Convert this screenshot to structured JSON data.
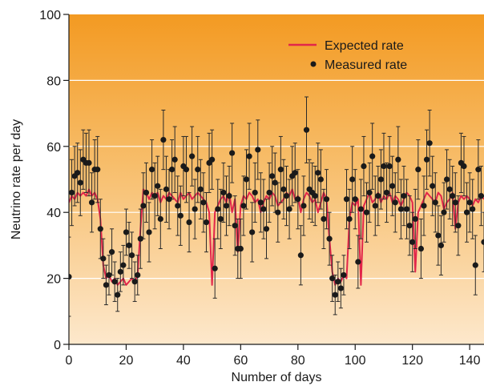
{
  "chart_data": {
    "type": "line",
    "title": "",
    "xlabel": "Number of days",
    "ylabel": "Neutrino rate per day",
    "xlim": [
      0,
      145
    ],
    "ylim": [
      0,
      100
    ],
    "x_ticks": [
      0,
      20,
      40,
      60,
      80,
      100,
      120,
      140
    ],
    "y_ticks": [
      0,
      20,
      40,
      60,
      80,
      100
    ],
    "grid": true,
    "legend_position": "top-right",
    "colors": {
      "expected": "#e2264a",
      "measured": "#1a1a1a",
      "background_top": "#f39a22",
      "background_bottom": "#fde8cc"
    },
    "legend": [
      {
        "name": "Expected rate",
        "kind": "line"
      },
      {
        "name": "Measured rate",
        "kind": "marker"
      }
    ],
    "series": [
      {
        "name": "Expected rate",
        "kind": "line",
        "x": [
          0,
          1,
          2,
          3,
          4,
          5,
          6,
          7,
          8,
          9,
          10,
          11,
          12,
          13,
          14,
          15,
          16,
          17,
          18,
          19,
          20,
          21,
          22,
          23,
          24,
          25,
          26,
          27,
          28,
          29,
          30,
          31,
          32,
          33,
          34,
          35,
          36,
          37,
          38,
          39,
          40,
          41,
          42,
          43,
          44,
          45,
          46,
          47,
          48,
          49,
          50,
          51,
          52,
          53,
          54,
          55,
          56,
          57,
          58,
          59,
          60,
          61,
          62,
          63,
          64,
          65,
          66,
          67,
          68,
          69,
          70,
          71,
          72,
          73,
          74,
          75,
          76,
          77,
          78,
          79,
          80,
          81,
          82,
          83,
          84,
          85,
          86,
          87,
          88,
          89,
          90,
          91,
          92,
          93,
          94,
          95,
          96,
          97,
          98,
          99,
          100,
          101,
          102,
          103,
          104,
          105,
          106,
          107,
          108,
          109,
          110,
          111,
          112,
          113,
          114,
          115,
          116,
          117,
          118,
          119,
          120,
          121,
          122,
          123,
          124,
          125,
          126,
          127,
          128,
          129,
          130,
          131,
          132,
          133,
          134,
          135,
          136,
          137,
          138,
          139,
          140,
          141,
          142,
          143,
          144,
          145
        ],
        "y": [
          43,
          45,
          44,
          46,
          45,
          46,
          45,
          47,
          45,
          46,
          44,
          38,
          24,
          20,
          21,
          19,
          20,
          18,
          19,
          20,
          18,
          19,
          20,
          19,
          21,
          35,
          47,
          46,
          44,
          46,
          45,
          46,
          43,
          45,
          44,
          46,
          45,
          44,
          43,
          46,
          44,
          45,
          46,
          44,
          45,
          46,
          45,
          44,
          43,
          40,
          18,
          40,
          42,
          44,
          45,
          43,
          46,
          40,
          44,
          28,
          42,
          45,
          44,
          46,
          45,
          43,
          44,
          40,
          43,
          45,
          44,
          46,
          45,
          42,
          43,
          44,
          46,
          45,
          47,
          44,
          45,
          40,
          44,
          46,
          45,
          43,
          44,
          40,
          43,
          46,
          44,
          32,
          22,
          18,
          20,
          19,
          21,
          20,
          38,
          43,
          42,
          44,
          18,
          42,
          44,
          46,
          43,
          44,
          46,
          43,
          45,
          44,
          46,
          43,
          45,
          44,
          42,
          44,
          46,
          45,
          43,
          22,
          40,
          42,
          44,
          46,
          45,
          44,
          43,
          46,
          45,
          41,
          43,
          44,
          46,
          35,
          43,
          45,
          44,
          45,
          44,
          42,
          44,
          43,
          45,
          44
        ]
      },
      {
        "name": "Measured rate",
        "kind": "marker",
        "points": [
          {
            "x": 0,
            "y": 20.5,
            "err": 12
          },
          {
            "x": 1,
            "y": 46,
            "err": 10
          },
          {
            "x": 2,
            "y": 51,
            "err": 9
          },
          {
            "x": 3,
            "y": 52,
            "err": 9
          },
          {
            "x": 4,
            "y": 49,
            "err": 10
          },
          {
            "x": 5,
            "y": 56,
            "err": 9
          },
          {
            "x": 6,
            "y": 55,
            "err": 9
          },
          {
            "x": 7,
            "y": 55,
            "err": 10
          },
          {
            "x": 8,
            "y": 43,
            "err": 9
          },
          {
            "x": 9,
            "y": 53,
            "err": 9
          },
          {
            "x": 10,
            "y": 53,
            "err": 10
          },
          {
            "x": 11,
            "y": 35,
            "err": 9
          },
          {
            "x": 12,
            "y": 26,
            "err": 6
          },
          {
            "x": 13,
            "y": 18,
            "err": 6
          },
          {
            "x": 14,
            "y": 21,
            "err": 6
          },
          {
            "x": 15,
            "y": 28,
            "err": 7
          },
          {
            "x": 16,
            "y": 19,
            "err": 6
          },
          {
            "x": 17,
            "y": 15,
            "err": 5
          },
          {
            "x": 18,
            "y": 22,
            "err": 6
          },
          {
            "x": 19,
            "y": 24,
            "err": 6
          },
          {
            "x": 20,
            "y": 34,
            "err": 7
          },
          {
            "x": 21,
            "y": 30,
            "err": 7
          },
          {
            "x": 22,
            "y": 27,
            "err": 7
          },
          {
            "x": 23,
            "y": 19,
            "err": 6
          },
          {
            "x": 24,
            "y": 21,
            "err": 6
          },
          {
            "x": 25,
            "y": 32,
            "err": 9
          },
          {
            "x": 26,
            "y": 42,
            "err": 10
          },
          {
            "x": 27,
            "y": 46,
            "err": 9
          },
          {
            "x": 28,
            "y": 34,
            "err": 9
          },
          {
            "x": 29,
            "y": 53,
            "err": 9
          },
          {
            "x": 30,
            "y": 45,
            "err": 10
          },
          {
            "x": 31,
            "y": 48,
            "err": 9
          },
          {
            "x": 32,
            "y": 38,
            "err": 9
          },
          {
            "x": 33,
            "y": 62,
            "err": 9
          },
          {
            "x": 34,
            "y": 47,
            "err": 10
          },
          {
            "x": 35,
            "y": 44,
            "err": 9
          },
          {
            "x": 36,
            "y": 53,
            "err": 9
          },
          {
            "x": 37,
            "y": 56,
            "err": 10
          },
          {
            "x": 38,
            "y": 42,
            "err": 9
          },
          {
            "x": 39,
            "y": 39,
            "err": 9
          },
          {
            "x": 40,
            "y": 54,
            "err": 9
          },
          {
            "x": 41,
            "y": 53,
            "err": 10
          },
          {
            "x": 42,
            "y": 37,
            "err": 9
          },
          {
            "x": 43,
            "y": 57,
            "err": 9
          },
          {
            "x": 44,
            "y": 41,
            "err": 9
          },
          {
            "x": 45,
            "y": 53,
            "err": 10
          },
          {
            "x": 46,
            "y": 47,
            "err": 9
          },
          {
            "x": 47,
            "y": 43,
            "err": 9
          },
          {
            "x": 48,
            "y": 37,
            "err": 9
          },
          {
            "x": 49,
            "y": 55,
            "err": 9
          },
          {
            "x": 50,
            "y": 56,
            "err": 9
          },
          {
            "x": 51,
            "y": 23,
            "err": 9
          },
          {
            "x": 52,
            "y": 41,
            "err": 9
          },
          {
            "x": 53,
            "y": 38,
            "err": 9
          },
          {
            "x": 54,
            "y": 46,
            "err": 9
          },
          {
            "x": 55,
            "y": 42,
            "err": 9
          },
          {
            "x": 56,
            "y": 45,
            "err": 9
          },
          {
            "x": 57,
            "y": 58,
            "err": 9
          },
          {
            "x": 58,
            "y": 36,
            "err": 9
          },
          {
            "x": 59,
            "y": 29,
            "err": 9
          },
          {
            "x": 60,
            "y": 29,
            "err": 9
          },
          {
            "x": 61,
            "y": 42,
            "err": 9
          },
          {
            "x": 62,
            "y": 50,
            "err": 9
          },
          {
            "x": 63,
            "y": 57,
            "err": 10
          },
          {
            "x": 64,
            "y": 34,
            "err": 9
          },
          {
            "x": 65,
            "y": 46,
            "err": 9
          },
          {
            "x": 66,
            "y": 59,
            "err": 9
          },
          {
            "x": 67,
            "y": 43,
            "err": 9
          },
          {
            "x": 68,
            "y": 41,
            "err": 9
          },
          {
            "x": 69,
            "y": 35,
            "err": 9
          },
          {
            "x": 70,
            "y": 46,
            "err": 9
          },
          {
            "x": 71,
            "y": 51,
            "err": 9
          },
          {
            "x": 72,
            "y": 49,
            "err": 9
          },
          {
            "x": 73,
            "y": 40,
            "err": 9
          },
          {
            "x": 74,
            "y": 53,
            "err": 10
          },
          {
            "x": 75,
            "y": 47,
            "err": 9
          },
          {
            "x": 76,
            "y": 45,
            "err": 9
          },
          {
            "x": 77,
            "y": 41,
            "err": 9
          },
          {
            "x": 78,
            "y": 51,
            "err": 9
          },
          {
            "x": 79,
            "y": 52,
            "err": 9
          },
          {
            "x": 80,
            "y": 44,
            "err": 9
          },
          {
            "x": 81,
            "y": 27,
            "err": 9
          },
          {
            "x": 82,
            "y": 42,
            "err": 9
          },
          {
            "x": 83,
            "y": 65,
            "err": 10
          },
          {
            "x": 84,
            "y": 47,
            "err": 9
          },
          {
            "x": 85,
            "y": 46,
            "err": 9
          },
          {
            "x": 86,
            "y": 45,
            "err": 9
          },
          {
            "x": 87,
            "y": 52,
            "err": 9
          },
          {
            "x": 88,
            "y": 50,
            "err": 9
          },
          {
            "x": 89,
            "y": 38,
            "err": 9
          },
          {
            "x": 90,
            "y": 44,
            "err": 9
          },
          {
            "x": 91,
            "y": 32,
            "err": 8
          },
          {
            "x": 92,
            "y": 20,
            "err": 7
          },
          {
            "x": 93,
            "y": 15,
            "err": 6
          },
          {
            "x": 94,
            "y": 19,
            "err": 6
          },
          {
            "x": 95,
            "y": 17,
            "err": 6
          },
          {
            "x": 96,
            "y": 21,
            "err": 6
          },
          {
            "x": 97,
            "y": 44,
            "err": 9
          },
          {
            "x": 98,
            "y": 38,
            "err": 9
          },
          {
            "x": 99,
            "y": 50,
            "err": 10
          },
          {
            "x": 100,
            "y": 44,
            "err": 9
          },
          {
            "x": 101,
            "y": 25,
            "err": 8
          },
          {
            "x": 102,
            "y": 41,
            "err": 9
          },
          {
            "x": 103,
            "y": 54,
            "err": 9
          },
          {
            "x": 104,
            "y": 40,
            "err": 9
          },
          {
            "x": 105,
            "y": 46,
            "err": 9
          },
          {
            "x": 106,
            "y": 57,
            "err": 10
          },
          {
            "x": 107,
            "y": 42,
            "err": 9
          },
          {
            "x": 108,
            "y": 45,
            "err": 9
          },
          {
            "x": 109,
            "y": 50,
            "err": 9
          },
          {
            "x": 110,
            "y": 54,
            "err": 10
          },
          {
            "x": 111,
            "y": 46,
            "err": 9
          },
          {
            "x": 112,
            "y": 54,
            "err": 9
          },
          {
            "x": 113,
            "y": 48,
            "err": 9
          },
          {
            "x": 114,
            "y": 43,
            "err": 9
          },
          {
            "x": 115,
            "y": 56,
            "err": 10
          },
          {
            "x": 116,
            "y": 41,
            "err": 9
          },
          {
            "x": 117,
            "y": 45,
            "err": 9
          },
          {
            "x": 118,
            "y": 41,
            "err": 9
          },
          {
            "x": 119,
            "y": 36,
            "err": 9
          },
          {
            "x": 120,
            "y": 31,
            "err": 9
          },
          {
            "x": 121,
            "y": 38,
            "err": 9
          },
          {
            "x": 122,
            "y": 53,
            "err": 9
          },
          {
            "x": 123,
            "y": 29,
            "err": 9
          },
          {
            "x": 124,
            "y": 42,
            "err": 9
          },
          {
            "x": 125,
            "y": 56,
            "err": 9
          },
          {
            "x": 126,
            "y": 61,
            "err": 10
          },
          {
            "x": 127,
            "y": 48,
            "err": 9
          },
          {
            "x": 128,
            "y": 43,
            "err": 9
          },
          {
            "x": 129,
            "y": 33,
            "err": 9
          },
          {
            "x": 130,
            "y": 30,
            "err": 9
          },
          {
            "x": 131,
            "y": 40,
            "err": 9
          },
          {
            "x": 132,
            "y": 50,
            "err": 9
          },
          {
            "x": 133,
            "y": 47,
            "err": 9
          },
          {
            "x": 134,
            "y": 45,
            "err": 9
          },
          {
            "x": 135,
            "y": 43,
            "err": 9
          },
          {
            "x": 136,
            "y": 36,
            "err": 9
          },
          {
            "x": 137,
            "y": 55,
            "err": 9
          },
          {
            "x": 138,
            "y": 54,
            "err": 9
          },
          {
            "x": 139,
            "y": 40,
            "err": 9
          },
          {
            "x": 140,
            "y": 43,
            "err": 9
          },
          {
            "x": 141,
            "y": 41,
            "err": 9
          },
          {
            "x": 142,
            "y": 24,
            "err": 9
          },
          {
            "x": 143,
            "y": 53,
            "err": 9
          },
          {
            "x": 144,
            "y": 45,
            "err": 9
          },
          {
            "x": 145,
            "y": 31,
            "err": 9
          }
        ]
      }
    ]
  }
}
